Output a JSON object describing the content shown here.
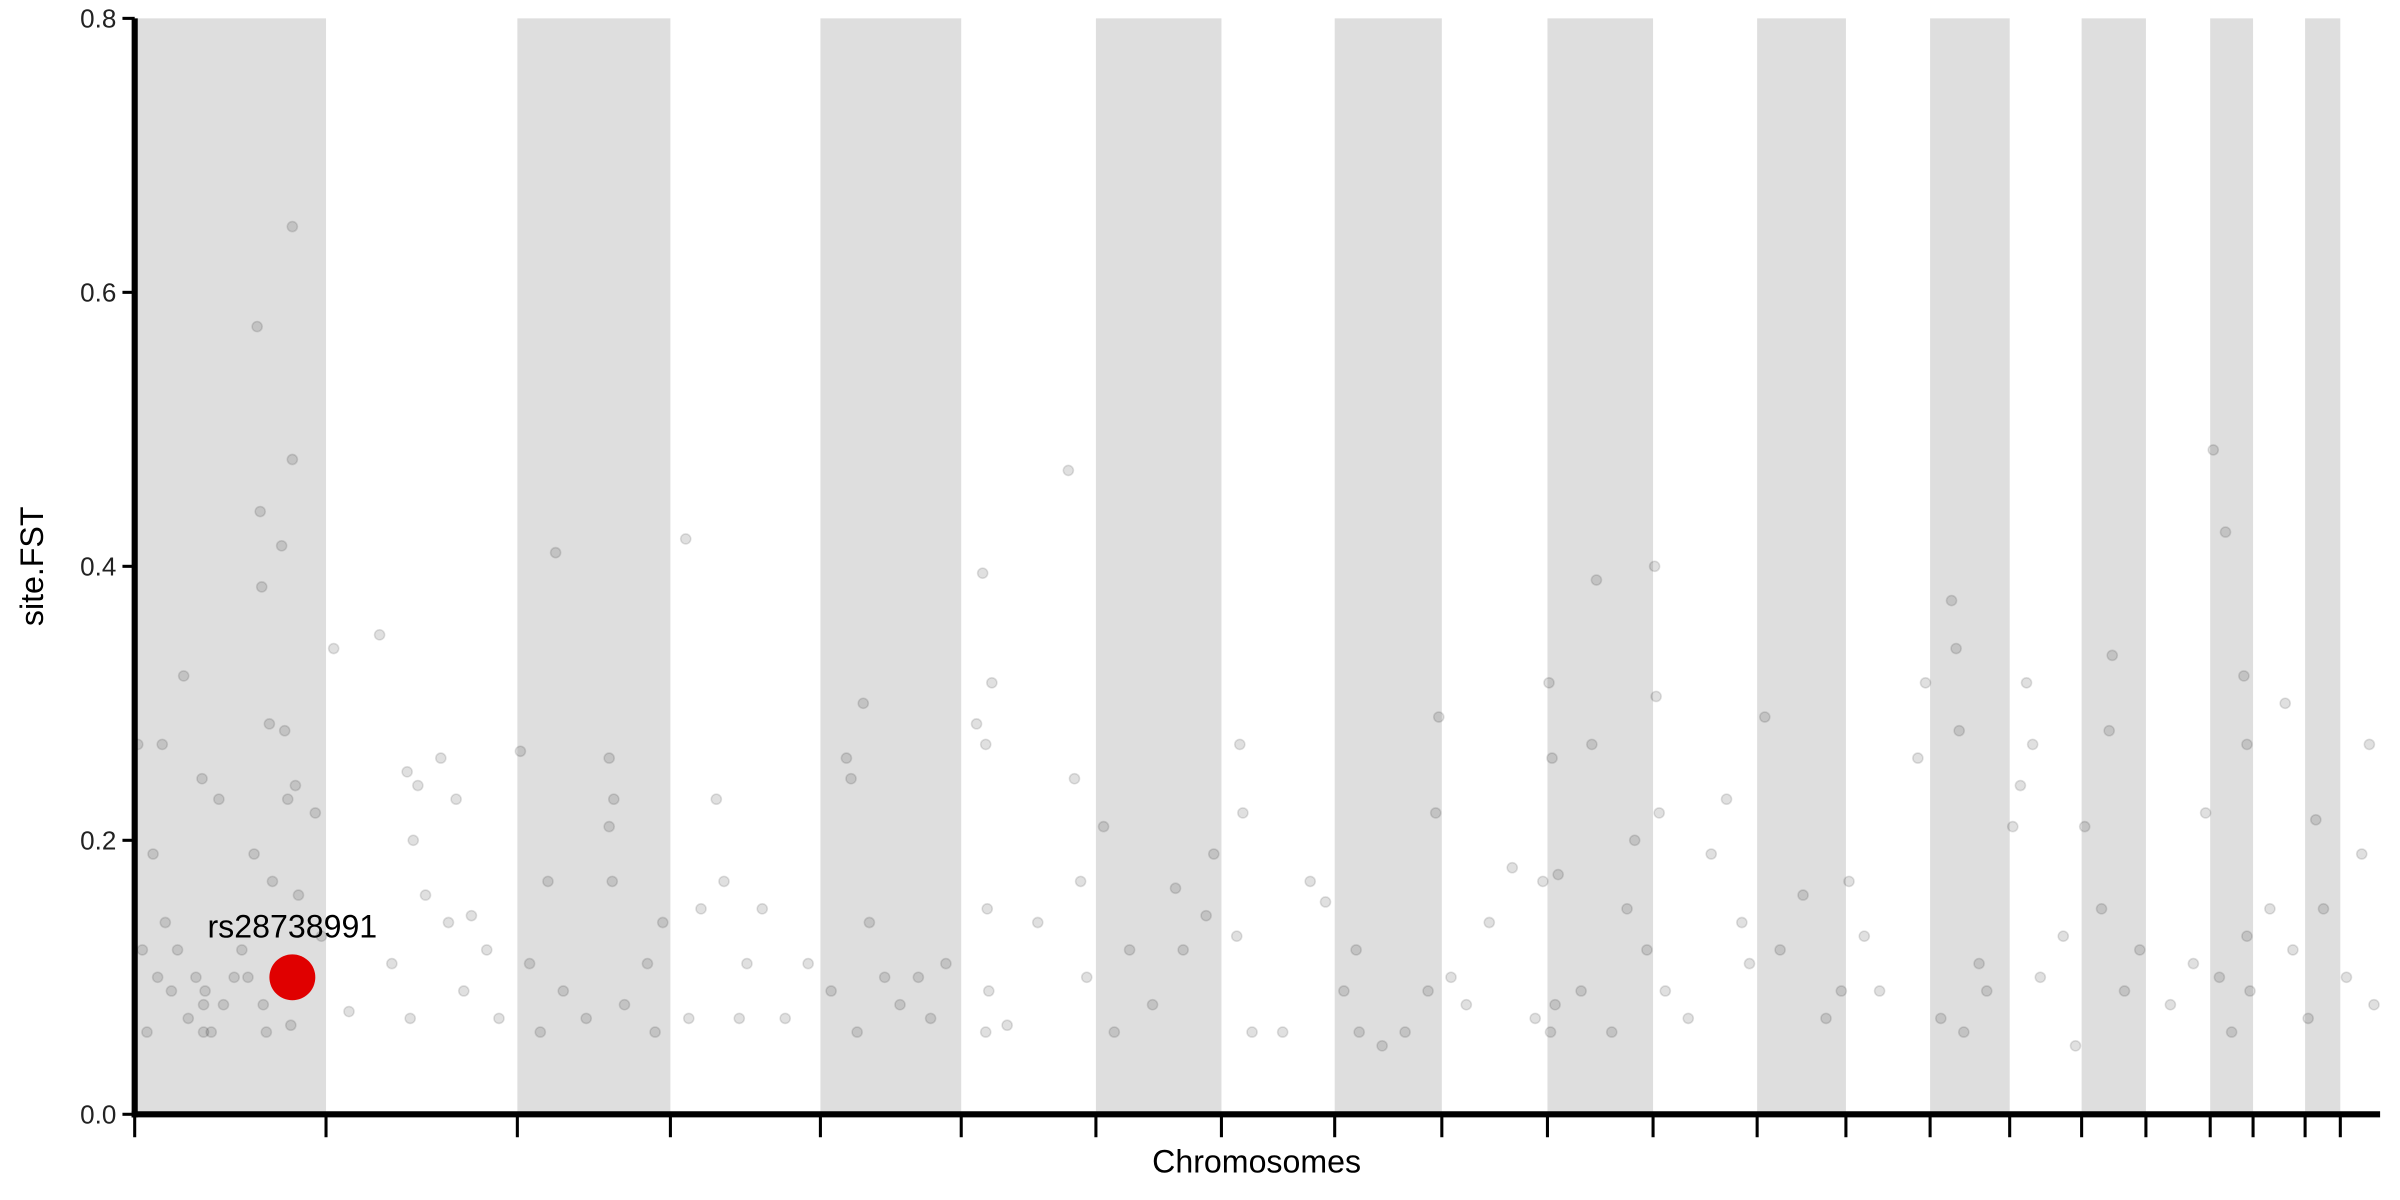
{
  "chart_data": {
    "type": "scatter",
    "xlabel": "Chromosomes",
    "ylabel": "site.FST",
    "color": "#000000",
    "band_color": "#dedede",
    "xlim": [
      0,
      1467
    ],
    "ylim": [
      0,
      0.8
    ],
    "yticks": [
      {
        "value": 0,
        "label": "0.0"
      },
      0.2,
      0.4,
      0.6,
      0.8
    ],
    "xticks": [
      0,
      125,
      250,
      350,
      448,
      540,
      628,
      710,
      784,
      854,
      923,
      992,
      1060,
      1118,
      1173,
      1225,
      1272,
      1314,
      1356,
      1384,
      1418,
      1441
    ],
    "x": [
      2,
      5,
      8,
      12,
      15,
      18,
      20,
      24,
      28,
      32,
      35,
      40,
      44,
      45,
      45,
      46,
      50,
      55,
      58,
      65,
      70,
      74,
      78,
      80,
      82,
      83,
      84,
      86,
      88,
      90,
      96,
      98,
      100,
      102,
      103,
      103,
      104,
      105,
      107,
      110,
      118,
      122,
      130,
      140,
      160,
      168,
      178,
      180,
      182,
      185,
      190,
      200,
      205,
      210,
      215,
      220,
      230,
      238,
      252,
      258,
      265,
      270,
      275,
      280,
      295,
      310,
      310,
      312,
      313,
      320,
      335,
      340,
      345,
      360,
      362,
      370,
      380,
      385,
      395,
      400,
      410,
      425,
      440,
      455,
      465,
      468,
      472,
      476,
      480,
      490,
      500,
      512,
      520,
      530,
      550,
      554,
      556,
      556,
      557,
      558,
      560,
      570,
      590,
      610,
      614,
      618,
      622,
      633,
      640,
      650,
      665,
      680,
      685,
      700,
      705,
      720,
      722,
      724,
      730,
      750,
      768,
      778,
      790,
      798,
      800,
      815,
      830,
      845,
      850,
      852,
      860,
      870,
      885,
      900,
      915,
      920,
      924,
      925,
      926,
      928,
      930,
      945,
      952,
      955,
      965,
      975,
      980,
      988,
      993,
      994,
      996,
      1000,
      1015,
      1030,
      1040,
      1050,
      1055,
      1065,
      1075,
      1090,
      1105,
      1115,
      1120,
      1130,
      1140,
      1165,
      1170,
      1180,
      1187,
      1190,
      1192,
      1195,
      1205,
      1210,
      1227,
      1232,
      1236,
      1240,
      1245,
      1260,
      1268,
      1274,
      1285,
      1290,
      1292,
      1300,
      1310,
      1330,
      1345,
      1353,
      1358,
      1362,
      1366,
      1370,
      1378,
      1380,
      1382,
      1380,
      1395,
      1405,
      1410,
      1420,
      1425,
      1430,
      1445,
      1455,
      1460,
      1463
    ],
    "values": [
      0.27,
      0.12,
      0.06,
      0.19,
      0.1,
      0.27,
      0.14,
      0.09,
      0.12,
      0.32,
      0.07,
      0.1,
      0.245,
      0.06,
      0.08,
      0.09,
      0.06,
      0.23,
      0.08,
      0.1,
      0.12,
      0.1,
      0.19,
      0.575,
      0.44,
      0.385,
      0.08,
      0.06,
      0.285,
      0.17,
      0.415,
      0.28,
      0.23,
      0.065,
      0.648,
      0.478,
      0.09,
      0.24,
      0.16,
      0.1,
      0.22,
      0.13,
      0.34,
      0.075,
      0.35,
      0.11,
      0.25,
      0.07,
      0.2,
      0.24,
      0.16,
      0.26,
      0.14,
      0.23,
      0.09,
      0.145,
      0.12,
      0.07,
      0.265,
      0.11,
      0.06,
      0.17,
      0.41,
      0.09,
      0.07,
      0.26,
      0.21,
      0.17,
      0.23,
      0.08,
      0.11,
      0.06,
      0.14,
      0.42,
      0.07,
      0.15,
      0.23,
      0.17,
      0.07,
      0.11,
      0.15,
      0.07,
      0.11,
      0.09,
      0.26,
      0.245,
      0.06,
      0.3,
      0.14,
      0.1,
      0.08,
      0.1,
      0.07,
      0.11,
      0.285,
      0.395,
      0.27,
      0.06,
      0.15,
      0.09,
      0.315,
      0.065,
      0.14,
      0.47,
      0.245,
      0.17,
      0.1,
      0.21,
      0.06,
      0.12,
      0.08,
      0.165,
      0.12,
      0.145,
      0.19,
      0.13,
      0.27,
      0.22,
      0.06,
      0.06,
      0.17,
      0.155,
      0.09,
      0.12,
      0.06,
      0.05,
      0.06,
      0.09,
      0.22,
      0.29,
      0.1,
      0.08,
      0.14,
      0.18,
      0.07,
      0.17,
      0.315,
      0.06,
      0.26,
      0.08,
      0.175,
      0.09,
      0.27,
      0.39,
      0.06,
      0.15,
      0.2,
      0.12,
      0.4,
      0.305,
      0.22,
      0.09,
      0.07,
      0.19,
      0.23,
      0.14,
      0.11,
      0.29,
      0.12,
      0.16,
      0.07,
      0.09,
      0.17,
      0.13,
      0.09,
      0.26,
      0.315,
      0.07,
      0.375,
      0.34,
      0.28,
      0.06,
      0.11,
      0.09,
      0.21,
      0.24,
      0.315,
      0.27,
      0.1,
      0.13,
      0.05,
      0.21,
      0.15,
      0.28,
      0.335,
      0.09,
      0.12,
      0.08,
      0.11,
      0.22,
      0.485,
      0.1,
      0.425,
      0.06,
      0.32,
      0.27,
      0.09,
      0.13,
      0.15,
      0.3,
      0.12,
      0.07,
      0.215,
      0.15,
      0.1,
      0.19,
      0.27,
      0.08
    ],
    "highlight": {
      "label": "rs28738991",
      "x": 103,
      "value": 0.1,
      "color": "#e00000"
    }
  }
}
